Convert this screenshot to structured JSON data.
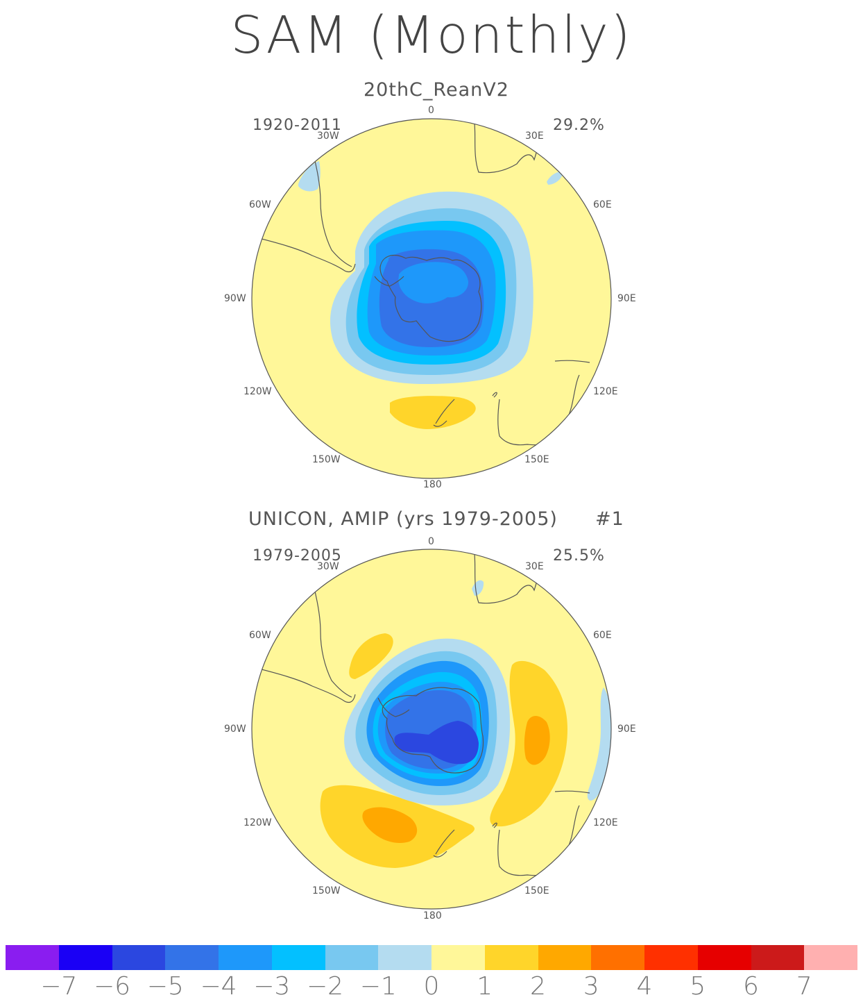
{
  "title": "SAM (Monthly)",
  "panels": [
    {
      "title": "20thC_ReanV2",
      "years": "1920-2011",
      "variance": "29.2%",
      "run_number": "",
      "lon_labels": {
        "top": "0",
        "lon30w": "30W",
        "lon30e": "30E",
        "lon60w": "60W",
        "lon60e": "60E",
        "lon90w": "90W",
        "lon90e": "90E",
        "lon120w": "120W",
        "lon120e": "120E",
        "lon150w": "150W",
        "lon150e": "150E",
        "bottom": "180"
      }
    },
    {
      "title": "UNICON, AMIP (yrs 1979-2005)",
      "years": "1979-2005",
      "variance": "25.5%",
      "run_number": "#1",
      "lon_labels": {
        "top": "0",
        "lon30w": "30W",
        "lon30e": "30E",
        "lon60w": "60W",
        "lon60e": "60E",
        "lon90w": "90W",
        "lon90e": "90E",
        "lon120w": "120W",
        "lon120e": "120E",
        "lon150w": "150W",
        "lon150e": "150E",
        "bottom": "180"
      }
    }
  ],
  "colorbar": {
    "colors": [
      "#8a1df0",
      "#1a00f5",
      "#2b47e0",
      "#3373e8",
      "#1e98fa",
      "#03c0ff",
      "#78c8f0",
      "#b4dcf0",
      "#fff799",
      "#ffd52a",
      "#ffa800",
      "#ff7000",
      "#ff3000",
      "#e60000",
      "#cc1a1a",
      "#ffb0b0"
    ],
    "labels": [
      "-7",
      "-6",
      "-5",
      "-4",
      "-3",
      "-2",
      "-1",
      "0",
      "1",
      "2",
      "3",
      "4",
      "5",
      "6",
      "7"
    ]
  }
}
